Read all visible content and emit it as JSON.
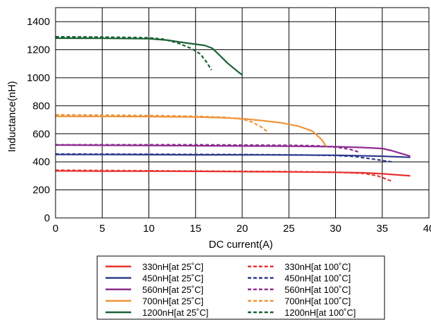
{
  "chart_data": {
    "type": "line",
    "title": "",
    "xlabel": "DC current(A)",
    "ylabel": "Inductance(nH)",
    "xlim": [
      0,
      40
    ],
    "ylim": [
      0,
      1500
    ],
    "xticks": [
      0,
      5,
      10,
      15,
      20,
      25,
      30,
      35,
      40
    ],
    "yticks": [
      0,
      200,
      400,
      600,
      800,
      1000,
      1200,
      1400
    ],
    "grid": true,
    "legend_position": "bottom",
    "series": [
      {
        "name": "330nH[at 25˚C]",
        "color": "#e8312f",
        "dash": "solid",
        "x": [
          0,
          5,
          10,
          15,
          20,
          25,
          30,
          33,
          35,
          36,
          38
        ],
        "y": [
          335,
          333,
          333,
          332,
          330,
          328,
          325,
          322,
          315,
          310,
          300
        ]
      },
      {
        "name": "450nH[at 25˚C]",
        "color": "#2e3a8c",
        "dash": "solid",
        "x": [
          0,
          5,
          10,
          15,
          20,
          25,
          30,
          35,
          38
        ],
        "y": [
          452,
          452,
          451,
          450,
          450,
          449,
          447,
          440,
          432
        ]
      },
      {
        "name": "560nH[at 25˚C]",
        "color": "#8e2c90",
        "dash": "solid",
        "x": [
          0,
          5,
          10,
          15,
          20,
          25,
          30,
          33,
          35,
          36,
          37,
          38
        ],
        "y": [
          520,
          518,
          517,
          515,
          513,
          512,
          508,
          502,
          495,
          480,
          460,
          440
        ]
      },
      {
        "name": "700nH[at 25˚C]",
        "color": "#f0943a",
        "dash": "solid",
        "x": [
          0,
          5,
          10,
          15,
          18,
          20,
          22,
          24,
          26,
          27.5,
          28.5,
          29
        ],
        "y": [
          725,
          724,
          723,
          720,
          715,
          708,
          695,
          680,
          655,
          620,
          560,
          510
        ]
      },
      {
        "name": "1200nH[at 25˚C]",
        "color": "#1b6135",
        "dash": "solid",
        "x": [
          0,
          5,
          10,
          12,
          14,
          16,
          16.8,
          17.5,
          18.5,
          19.5,
          20
        ],
        "y": [
          1282,
          1281,
          1278,
          1268,
          1248,
          1230,
          1210,
          1165,
          1100,
          1045,
          1020
        ]
      },
      {
        "name": "330nH[at 100˚C]",
        "color": "#e8312f",
        "dash": "dashed",
        "x": [
          0,
          5,
          10,
          15,
          20,
          25,
          30,
          33,
          34.5,
          35.5,
          36
        ],
        "y": [
          340,
          338,
          336,
          334,
          332,
          330,
          326,
          318,
          300,
          275,
          262
        ]
      },
      {
        "name": "450nH[at 100˚C]",
        "color": "#2e3a8c",
        "dash": "dashed",
        "x": [
          0,
          5,
          10,
          15,
          20,
          25,
          30,
          32,
          34,
          35,
          36
        ],
        "y": [
          456,
          455,
          454,
          453,
          452,
          450,
          445,
          438,
          420,
          410,
          400
        ]
      },
      {
        "name": "560nH[at 100˚C]",
        "color": "#8e2c90",
        "dash": "dashed",
        "x": [
          0,
          5,
          10,
          15,
          20,
          25,
          28,
          30,
          31.5,
          32.5
        ],
        "y": [
          522,
          522,
          522,
          522,
          520,
          518,
          515,
          505,
          490,
          470
        ]
      },
      {
        "name": "700nH[at 100˚C]",
        "color": "#f0943a",
        "dash": "dashed",
        "x": [
          0,
          5,
          10,
          15,
          18,
          20,
          21,
          22,
          22.8
        ],
        "y": [
          735,
          733,
          730,
          725,
          718,
          705,
          685,
          650,
          610
        ]
      },
      {
        "name": "1200nH[at 100˚C]",
        "color": "#1b6135",
        "dash": "dashed",
        "x": [
          0,
          5,
          10,
          11.5,
          13,
          14.5,
          15.5,
          16.2,
          16.7
        ],
        "y": [
          1292,
          1290,
          1285,
          1275,
          1250,
          1210,
          1170,
          1110,
          1055
        ]
      }
    ]
  }
}
